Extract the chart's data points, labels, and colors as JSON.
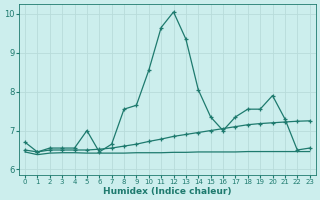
{
  "xlabel": "Humidex (Indice chaleur)",
  "xlim": [
    -0.5,
    23.5
  ],
  "ylim": [
    5.85,
    10.25
  ],
  "yticks": [
    6,
    7,
    8,
    9,
    10
  ],
  "xticks": [
    0,
    1,
    2,
    3,
    4,
    5,
    6,
    7,
    8,
    9,
    10,
    11,
    12,
    13,
    14,
    15,
    16,
    17,
    18,
    19,
    20,
    21,
    22,
    23
  ],
  "bg_color": "#cceeed",
  "grid_color": "#b8dcda",
  "line_color": "#1e7a6e",
  "line1_x": [
    0,
    1,
    2,
    3,
    4,
    5,
    6,
    7,
    8,
    9,
    10,
    11,
    12,
    13,
    14,
    15,
    16,
    17,
    18,
    19,
    20,
    21,
    22,
    23
  ],
  "line1_y": [
    6.7,
    6.45,
    6.55,
    6.55,
    6.55,
    7.0,
    6.45,
    6.65,
    7.55,
    7.65,
    8.55,
    9.65,
    10.05,
    9.35,
    8.05,
    7.35,
    7.0,
    7.35,
    7.55,
    7.55,
    7.9,
    7.3,
    6.5,
    6.55
  ],
  "line2_x": [
    0,
    1,
    2,
    3,
    4,
    5,
    6,
    7,
    8,
    9,
    10,
    11,
    12,
    13,
    14,
    15,
    16,
    17,
    18,
    19,
    20,
    21,
    22,
    23
  ],
  "line2_y": [
    6.5,
    6.45,
    6.5,
    6.5,
    6.5,
    6.5,
    6.52,
    6.55,
    6.6,
    6.65,
    6.72,
    6.78,
    6.85,
    6.9,
    6.95,
    7.0,
    7.05,
    7.1,
    7.15,
    7.18,
    7.2,
    7.22,
    7.24,
    7.25
  ],
  "line3_x": [
    0,
    1,
    2,
    3,
    4,
    5,
    6,
    7,
    8,
    9,
    10,
    11,
    12,
    13,
    14,
    15,
    16,
    17,
    18,
    19,
    20,
    21,
    22,
    23
  ],
  "line3_y": [
    6.45,
    6.38,
    6.42,
    6.43,
    6.43,
    6.42,
    6.42,
    6.42,
    6.42,
    6.43,
    6.43,
    6.43,
    6.44,
    6.44,
    6.45,
    6.45,
    6.45,
    6.45,
    6.46,
    6.46,
    6.46,
    6.46,
    6.46,
    6.46
  ]
}
